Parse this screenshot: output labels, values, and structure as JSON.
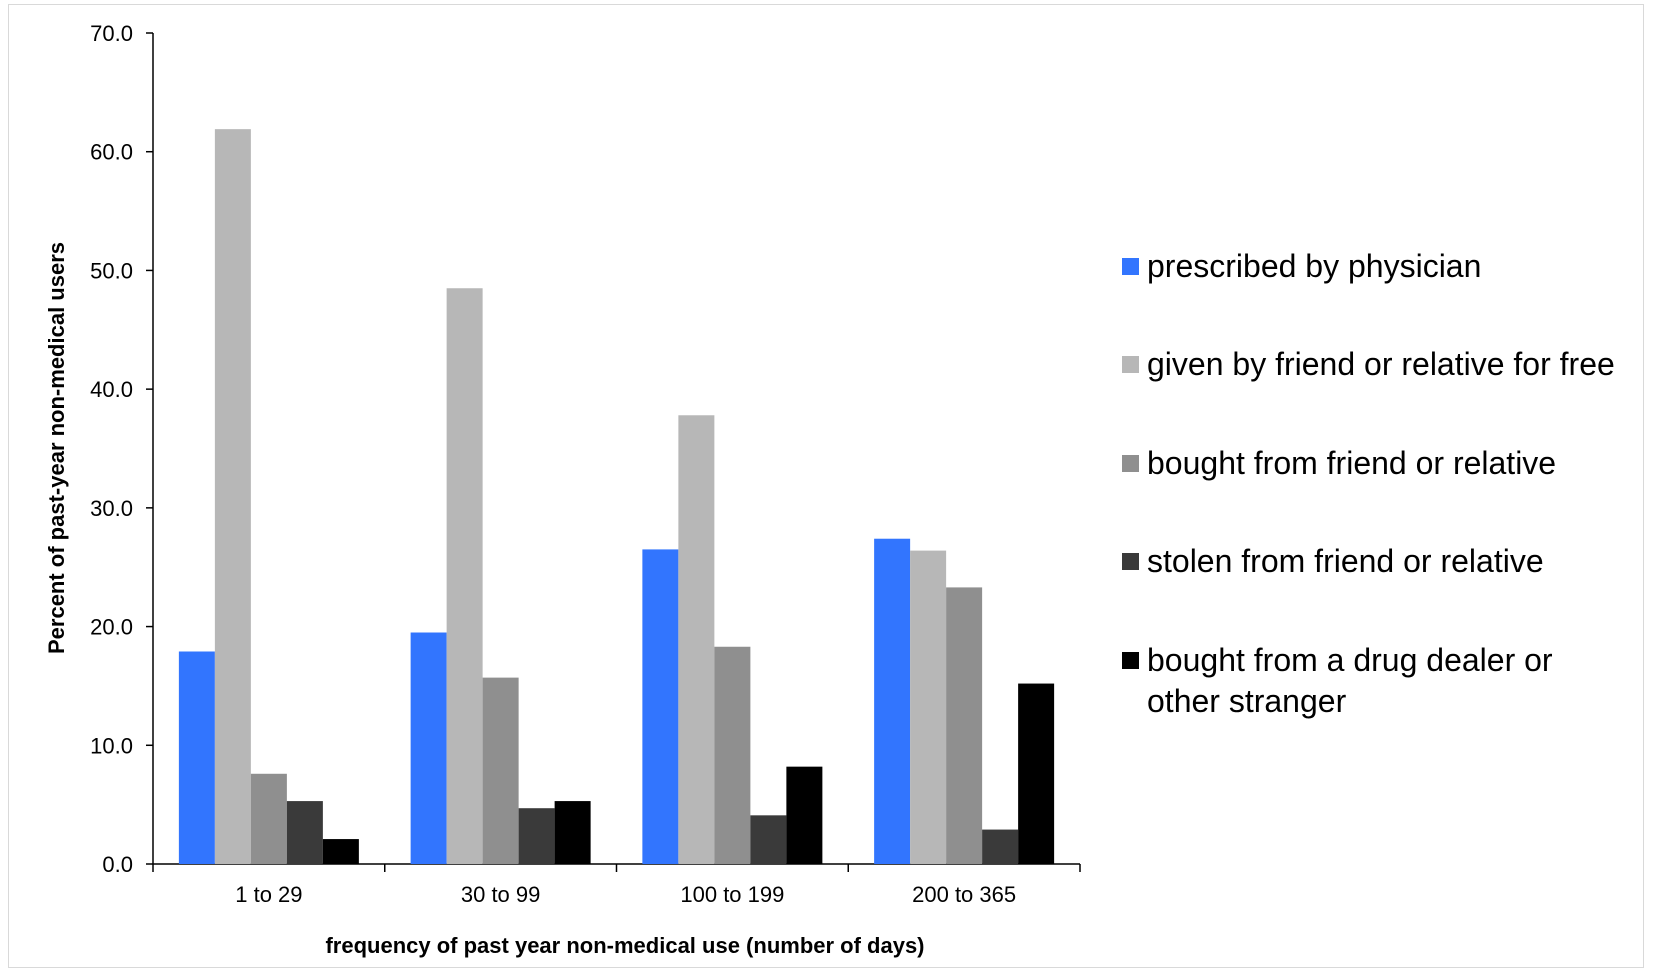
{
  "chart_data": {
    "type": "bar",
    "categories": [
      "1 to 29",
      "30 to 99",
      "100 to 199",
      "200 to 365"
    ],
    "series": [
      {
        "name": "prescribed by physician",
        "color": "#3275fe",
        "values": [
          17.9,
          19.5,
          26.5,
          27.4
        ]
      },
      {
        "name": "given by friend or relative for free",
        "color": "#b7b7b7",
        "values": [
          61.9,
          48.5,
          37.8,
          26.4
        ]
      },
      {
        "name": "bought from friend or relative",
        "color": "#8f8f8f",
        "values": [
          7.6,
          15.7,
          18.3,
          23.3
        ]
      },
      {
        "name": "stolen from friend or relative",
        "color": "#3a3a3a",
        "values": [
          5.3,
          4.7,
          4.1,
          2.9
        ]
      },
      {
        "name": "bought from a drug dealer or other stranger",
        "color": "#000000",
        "values": [
          2.1,
          5.3,
          8.2,
          15.2
        ]
      }
    ],
    "xlabel": "frequency of past year non-medical use (number of days)",
    "ylabel": "Percent of past-year non-medical users",
    "ylim": [
      0,
      70
    ],
    "yticks": [
      "0.0",
      "10.0",
      "20.0",
      "30.0",
      "40.0",
      "50.0",
      "60.0",
      "70.0"
    ],
    "grid": false,
    "legend_position": "right"
  }
}
